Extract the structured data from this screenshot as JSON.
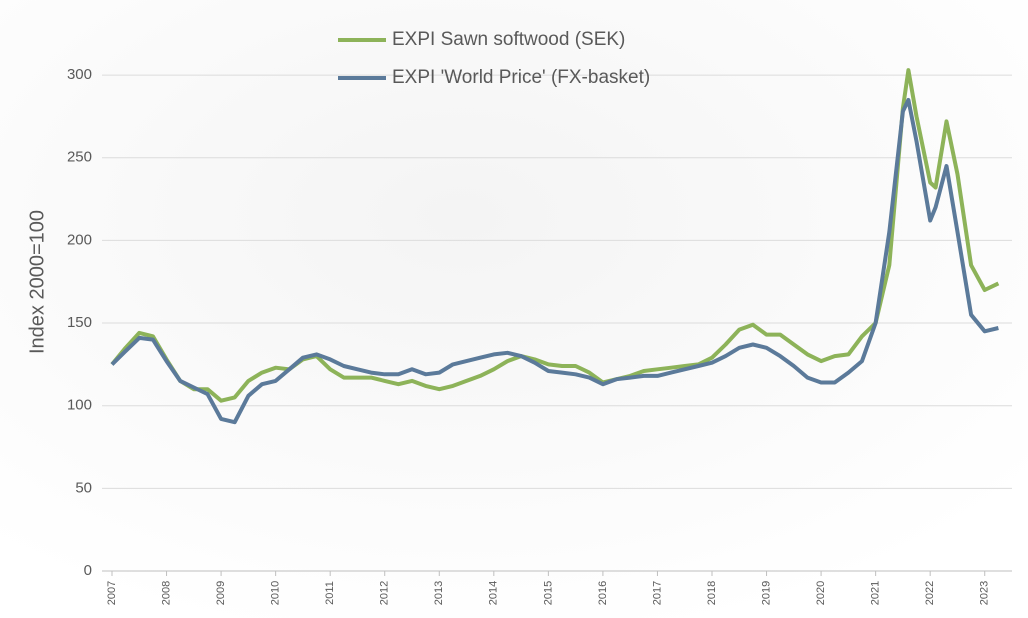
{
  "chart_data": {
    "type": "line",
    "y_label": "Index 2000=100",
    "x": [
      2007.0,
      2007.25,
      2007.5,
      2007.75,
      2008.0,
      2008.25,
      2008.5,
      2008.75,
      2009.0,
      2009.25,
      2009.5,
      2009.75,
      2010.0,
      2010.25,
      2010.5,
      2010.75,
      2011.0,
      2011.25,
      2011.5,
      2011.75,
      2012.0,
      2012.25,
      2012.5,
      2012.75,
      2013.0,
      2013.25,
      2013.5,
      2013.75,
      2014.0,
      2014.25,
      2014.5,
      2014.75,
      2015.0,
      2015.25,
      2015.5,
      2015.75,
      2016.0,
      2016.25,
      2016.5,
      2016.75,
      2017.0,
      2017.25,
      2017.5,
      2017.75,
      2018.0,
      2018.25,
      2018.5,
      2018.75,
      2019.0,
      2019.25,
      2019.5,
      2019.75,
      2020.0,
      2020.25,
      2020.5,
      2020.75,
      2021.0,
      2021.25,
      2021.5,
      2021.6,
      2021.75,
      2022.0,
      2022.1,
      2022.3,
      2022.5,
      2022.75,
      2023.0,
      2023.25
    ],
    "series": [
      {
        "name": "EXPI Sawn softwood (SEK)",
        "color": "#8db359",
        "values": [
          125,
          135,
          144,
          142,
          128,
          115,
          110,
          110,
          103,
          105,
          115,
          120,
          123,
          122,
          128,
          130,
          122,
          117,
          117,
          117,
          115,
          113,
          115,
          112,
          110,
          112,
          115,
          118,
          122,
          127,
          130,
          128,
          125,
          124,
          124,
          120,
          114,
          116,
          118,
          121,
          122,
          123,
          124,
          125,
          129,
          137,
          146,
          149,
          143,
          143,
          137,
          131,
          127,
          130,
          131,
          142,
          150,
          185,
          280,
          303,
          275,
          235,
          232,
          272,
          240,
          185,
          170,
          174
        ]
      },
      {
        "name": "EXPI 'World Price' (FX-basket)",
        "color": "#5b7a9a",
        "values": [
          125,
          133,
          141,
          140,
          127,
          115,
          111,
          107,
          92,
          90,
          106,
          113,
          115,
          122,
          129,
          131,
          128,
          124,
          122,
          120,
          119,
          119,
          122,
          119,
          120,
          125,
          127,
          129,
          131,
          132,
          130,
          126,
          121,
          120,
          119,
          117,
          113,
          116,
          117,
          118,
          118,
          120,
          122,
          124,
          126,
          130,
          135,
          137,
          135,
          130,
          124,
          117,
          114,
          114,
          120,
          127,
          150,
          205,
          278,
          285,
          260,
          212,
          220,
          245,
          205,
          155,
          145,
          147
        ]
      }
    ],
    "xlim": [
      2007,
      2023.5
    ],
    "xticks": [
      2007,
      2008,
      2009,
      2010,
      2011,
      2012,
      2013,
      2014,
      2015,
      2016,
      2017,
      2018,
      2019,
      2020,
      2021,
      2022,
      2023
    ],
    "ylim": [
      0,
      320
    ],
    "yticks": [
      0,
      50,
      100,
      150,
      200,
      250,
      300
    ],
    "grid": true
  }
}
